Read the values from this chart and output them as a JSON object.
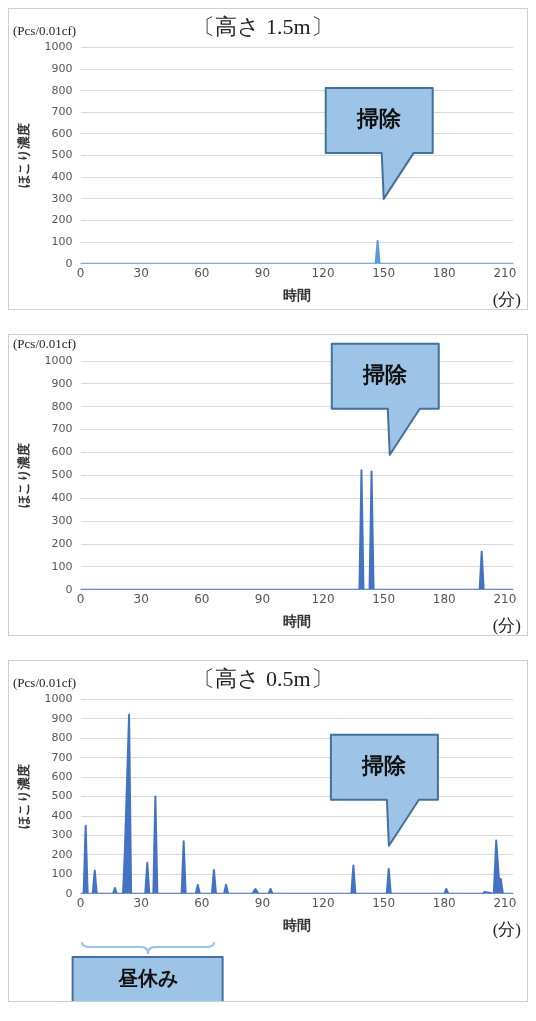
{
  "chart_data": [
    {
      "type": "area",
      "title": "〔高さ 1.5m〕",
      "xlabel": "時間",
      "ylabel": "ほこり濃度",
      "xlim": [
        0,
        214
      ],
      "xticks": [
        0,
        30,
        60,
        90,
        120,
        150,
        180,
        210
      ],
      "ylim": [
        0,
        1000
      ],
      "yticks": [
        0,
        100,
        200,
        300,
        400,
        500,
        600,
        700,
        800,
        900,
        1000
      ],
      "grid": "y",
      "legend": false,
      "x": [
        0,
        146,
        147,
        148,
        214
      ],
      "series": [
        {
          "color": "#5b9bd5",
          "values": [
            0,
            0,
            105,
            0,
            0
          ]
        }
      ],
      "annotations": [
        "(Pcs/0.01cf)",
        "掃除",
        "(分)"
      ]
    },
    {
      "type": "area",
      "xlabel": "時間",
      "ylabel": "ほこり濃度",
      "xlim": [
        0,
        214
      ],
      "xticks": [
        0,
        30,
        60,
        90,
        120,
        150,
        180,
        210
      ],
      "ylim": [
        0,
        1000
      ],
      "yticks": [
        0,
        100,
        200,
        300,
        400,
        500,
        600,
        700,
        800,
        900,
        1000
      ],
      "grid": "y",
      "legend": false,
      "x": [
        0,
        138,
        139,
        140,
        143,
        144,
        145,
        197.5,
        198.5,
        199.5,
        214
      ],
      "series": [
        {
          "color": "#4472c4",
          "values": [
            0,
            0,
            523,
            0,
            0,
            517,
            0,
            0,
            166,
            0,
            0
          ]
        }
      ],
      "annotations": [
        "(Pcs/0.01cf)",
        "掃除",
        "(分)"
      ]
    },
    {
      "type": "area",
      "title": "〔高さ 0.5m〕",
      "xlabel": "時間",
      "ylabel": "ほこり濃度",
      "xlim": [
        0,
        214
      ],
      "xticks": [
        0,
        30,
        60,
        90,
        120,
        150,
        180,
        210
      ],
      "ylim": [
        0,
        1000
      ],
      "yticks": [
        0,
        100,
        200,
        300,
        400,
        500,
        600,
        700,
        800,
        900,
        1000
      ],
      "grid": "y",
      "legend": false,
      "x": [
        0,
        1.5,
        2.5,
        3.5,
        6,
        7,
        8,
        16,
        17,
        18,
        21,
        22,
        24,
        25,
        32,
        33,
        34,
        36,
        37,
        38,
        50,
        51,
        52,
        57,
        58,
        59,
        65,
        66,
        67,
        71,
        72,
        73,
        85,
        86.5,
        88,
        93,
        94,
        95,
        134,
        135,
        136,
        151.5,
        152.5,
        153.5,
        180,
        181,
        182,
        199,
        200,
        204.5,
        205.7,
        207,
        208,
        209,
        214
      ],
      "series": [
        {
          "color": "#4472c4",
          "values": [
            0,
            0,
            350,
            0,
            0,
            120,
            0,
            0,
            30,
            0,
            0,
            245,
            922,
            0,
            0,
            160,
            0,
            0,
            500,
            0,
            0,
            270,
            0,
            0,
            45,
            0,
            0,
            123,
            0,
            0,
            47,
            0,
            0,
            25,
            0,
            0,
            25,
            0,
            0,
            145,
            0,
            0,
            128,
            0,
            0,
            25,
            0,
            0,
            10,
            0,
            274,
            80,
            74,
            0,
            0
          ]
        }
      ],
      "annotations": [
        "(Pcs/0.01cf)",
        "掃除",
        "(分)",
        "昼休み"
      ]
    }
  ]
}
